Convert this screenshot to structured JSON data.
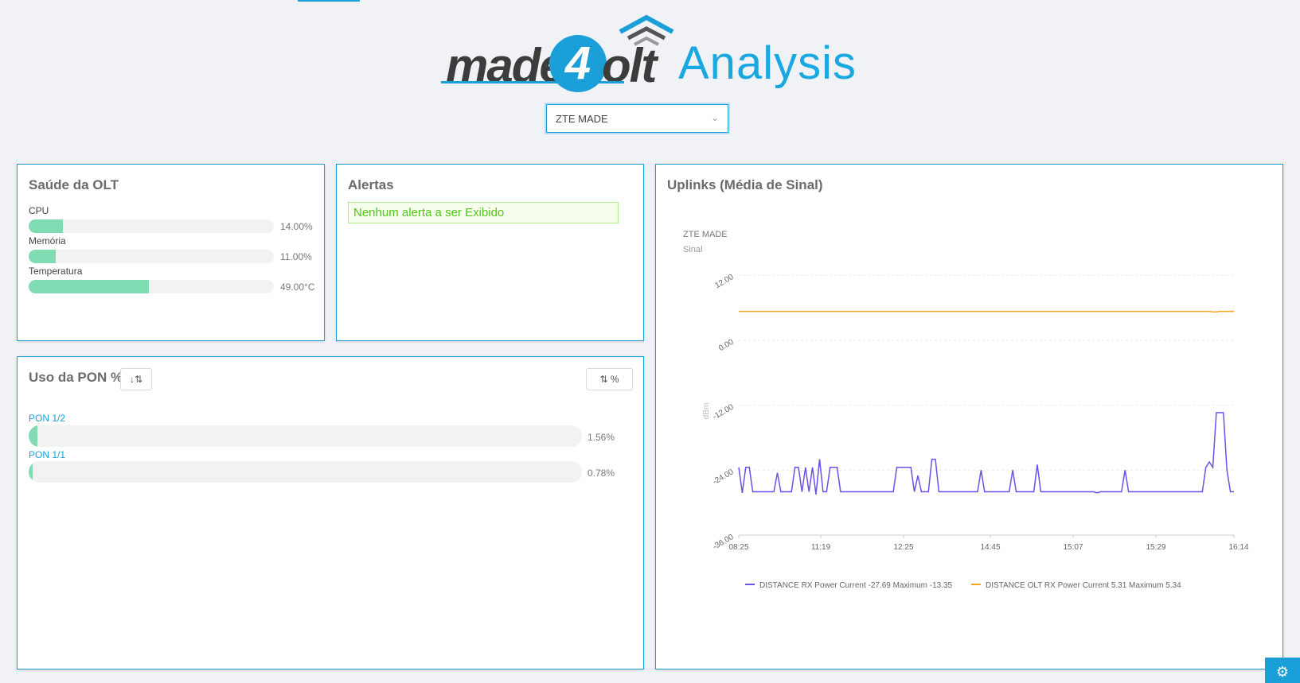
{
  "logo": {
    "made": "made",
    "four": "4",
    "olt": "olt",
    "analysis": "Analysis"
  },
  "olt_select": {
    "value": "ZTE MADE"
  },
  "health": {
    "title": "Saúde da OLT",
    "metrics": [
      {
        "label": "CPU",
        "value": "14.00%",
        "fraction": 0.14
      },
      {
        "label": "Memória",
        "value": "11.00%",
        "fraction": 0.11
      },
      {
        "label": "Temperatura",
        "value": "49.00°C",
        "fraction": 0.49
      }
    ]
  },
  "alerts": {
    "title": "Alertas",
    "message": "Nenhum alerta a ser Exibido"
  },
  "pon": {
    "title": "Uso da PON %",
    "sort_icon": "↓⇅",
    "toggle_label": "%",
    "items": [
      {
        "label": "PON 1/2",
        "value": "1.56%",
        "fraction": 0.0156
      },
      {
        "label": "PON 1/1",
        "value": "0.78%",
        "fraction": 0.0078
      }
    ]
  },
  "uplinks": {
    "title": "Uplinks (Média de Sinal)",
    "colors": {
      "series1": "#6e4fe8",
      "series2": "#f5a623"
    }
  },
  "chart_data": {
    "type": "line",
    "title": "ZTE MADE",
    "subtitle": "Sinal",
    "ylabel": "dBm",
    "ylim": [
      -36,
      12
    ],
    "yticks": [
      "12.00",
      "0.00",
      "-12.00",
      "-24.00",
      "-36.00"
    ],
    "xticks": [
      "08:25",
      "11:19",
      "12:25",
      "14:45",
      "15:07",
      "15:29",
      "16:14"
    ],
    "grid": true,
    "legend_position": "bottom",
    "series": [
      {
        "name": "DISTANCE RX Power Current -27.69 Maximum -13.35",
        "color": "#6e4fe8",
        "values": [
          -23.5,
          -28.2,
          -23.5,
          -23.5,
          -28.0,
          -28.0,
          -28.0,
          -28.0,
          -28.0,
          -28.0,
          -28.0,
          -24.5,
          -28.0,
          -28.0,
          -28.0,
          -28.0,
          -23.5,
          -23.5,
          -28.0,
          -23.5,
          -28.0,
          -23.5,
          -28.5,
          -22.0,
          -28.0,
          -28.0,
          -23.5,
          -23.5,
          -23.5,
          -28.0,
          -28.0,
          -28.0,
          -28.0,
          -28.0,
          -28.0,
          -28.0,
          -28.0,
          -28.0,
          -28.0,
          -28.0,
          -28.0,
          -28.0,
          -28.0,
          -28.0,
          -28.0,
          -23.5,
          -23.5,
          -23.5,
          -23.5,
          -23.5,
          -28.0,
          -25.0,
          -28.0,
          -28.0,
          -28.0,
          -22.0,
          -22.0,
          -28.0,
          -28.0,
          -28.0,
          -28.0,
          -28.0,
          -28.0,
          -28.0,
          -28.0,
          -28.0,
          -28.0,
          -28.0,
          -28.0,
          -24.0,
          -28.0,
          -28.0,
          -28.0,
          -28.0,
          -28.0,
          -28.0,
          -28.0,
          -28.0,
          -24.0,
          -28.0,
          -28.0,
          -28.0,
          -28.0,
          -28.0,
          -28.0,
          -23.0,
          -28.0,
          -28.0,
          -28.0,
          -28.0,
          -28.0,
          -28.0,
          -28.0,
          -28.0,
          -28.0,
          -28.0,
          -28.0,
          -28.0,
          -28.0,
          -28.0,
          -28.0,
          -28.0,
          -28.2,
          -28.0,
          -28.0,
          -28.0,
          -28.0,
          -28.0,
          -28.0,
          -28.0,
          -24.0,
          -28.0,
          -28.0,
          -28.0,
          -28.0,
          -28.0,
          -28.0,
          -28.0,
          -28.0,
          -28.0,
          -28.0,
          -28.0,
          -28.0,
          -28.0,
          -28.0,
          -28.0,
          -28.0,
          -28.0,
          -28.0,
          -28.0,
          -28.0,
          -28.0,
          -28.0,
          -23.5,
          -22.5,
          -23.5,
          -13.4,
          -13.4,
          -13.4,
          -24.0,
          -28.0,
          -28.0
        ]
      },
      {
        "name": "DISTANCE OLT RX Power Current 5.31 Maximum 5.34",
        "color": "#f5a623",
        "values": [
          5.3,
          5.3,
          5.3,
          5.3,
          5.3,
          5.3,
          5.3,
          5.3,
          5.3,
          5.3,
          5.3,
          5.3,
          5.3,
          5.3,
          5.3,
          5.3,
          5.3,
          5.3,
          5.3,
          5.3,
          5.3,
          5.3,
          5.3,
          5.3,
          5.3,
          5.3,
          5.3,
          5.3,
          5.3,
          5.3,
          5.3,
          5.3,
          5.3,
          5.3,
          5.3,
          5.3,
          5.3,
          5.3,
          5.3,
          5.3,
          5.3,
          5.3,
          5.3,
          5.3,
          5.3,
          5.3,
          5.3,
          5.3,
          5.3,
          5.3,
          5.3,
          5.3,
          5.3,
          5.3,
          5.3,
          5.3,
          5.3,
          5.3,
          5.3,
          5.3,
          5.3,
          5.3,
          5.3,
          5.3,
          5.3,
          5.3,
          5.3,
          5.3,
          5.3,
          5.3,
          5.3,
          5.3,
          5.3,
          5.3,
          5.3,
          5.3,
          5.3,
          5.3,
          5.3,
          5.3,
          5.3,
          5.3,
          5.3,
          5.3,
          5.3,
          5.3,
          5.3,
          5.3,
          5.3,
          5.3,
          5.3,
          5.3,
          5.3,
          5.3,
          5.3,
          5.3,
          5.3,
          5.3,
          5.3,
          5.3,
          5.3,
          5.3,
          5.3,
          5.3,
          5.3,
          5.3,
          5.3,
          5.3,
          5.3,
          5.3,
          5.3,
          5.3,
          5.3,
          5.3,
          5.3,
          5.3,
          5.3,
          5.3,
          5.3,
          5.3,
          5.3,
          5.3,
          5.3,
          5.3,
          5.3,
          5.3,
          5.3,
          5.3,
          5.3,
          5.3,
          5.3,
          5.3,
          5.3,
          5.3,
          5.2,
          5.2,
          5.3,
          5.3,
          5.3,
          5.3,
          5.3
        ]
      }
    ]
  }
}
